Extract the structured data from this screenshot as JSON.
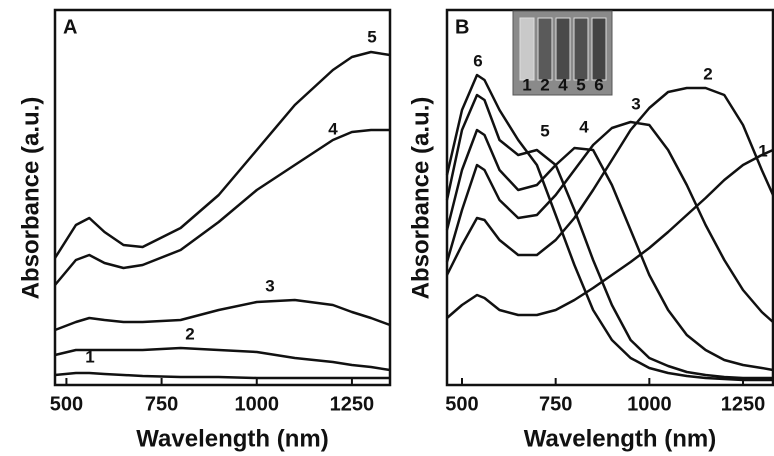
{
  "chart_data": [
    {
      "type": "line",
      "panel": "A",
      "x_label": "Wavelength (nm)",
      "y_label": "Absorbance (a.u.)",
      "x": [
        470,
        525,
        560,
        600,
        650,
        700,
        800,
        900,
        1000,
        1100,
        1200,
        1250,
        1300,
        1350
      ],
      "xlim": [
        470,
        1350
      ],
      "xticks": [
        500,
        750,
        1000,
        1250
      ],
      "ylim": [
        0,
        375
      ],
      "color": "#111111",
      "series": [
        {
          "name": "1",
          "values": [
            10,
            12,
            12,
            11,
            10,
            9,
            8,
            8,
            7,
            7,
            7,
            7,
            7,
            7
          ]
        },
        {
          "name": "2",
          "values": [
            30,
            35,
            35,
            35,
            35,
            35,
            37,
            35,
            33,
            27,
            23,
            20,
            18,
            15
          ]
        },
        {
          "name": "3",
          "values": [
            55,
            63,
            67,
            65,
            63,
            63,
            65,
            75,
            83,
            85,
            80,
            73,
            67,
            60
          ]
        },
        {
          "name": "4",
          "values": [
            100,
            125,
            130,
            122,
            117,
            120,
            135,
            163,
            195,
            220,
            245,
            253,
            255,
            255
          ]
        },
        {
          "name": "5",
          "values": [
            127,
            160,
            167,
            153,
            140,
            138,
            157,
            190,
            235,
            280,
            315,
            328,
            333,
            330
          ]
        }
      ]
    },
    {
      "type": "line",
      "panel": "B",
      "x_label": "Wavelength (nm)",
      "y_label": "Absorbance (a.u.)",
      "inset_labels": [
        "1",
        "2",
        "4",
        "5",
        "6"
      ],
      "x": [
        460,
        500,
        540,
        560,
        600,
        650,
        700,
        750,
        800,
        850,
        900,
        950,
        1000,
        1050,
        1100,
        1150,
        1200,
        1250,
        1300,
        1330
      ],
      "xlim": [
        460,
        1330
      ],
      "xticks": [
        500,
        750,
        1000,
        1250
      ],
      "ylim": [
        0,
        375
      ],
      "color": "#111111",
      "series": [
        {
          "name": "1",
          "values": [
            67,
            80,
            90,
            87,
            75,
            70,
            70,
            75,
            85,
            97,
            110,
            123,
            137,
            153,
            170,
            187,
            205,
            220,
            230,
            235
          ]
        },
        {
          "name": "2",
          "values": [
            110,
            140,
            167,
            165,
            145,
            130,
            130,
            145,
            167,
            195,
            225,
            255,
            277,
            293,
            297,
            297,
            290,
            260,
            215,
            190
          ]
        },
        {
          "name": "3",
          "values": [
            123,
            175,
            220,
            215,
            185,
            167,
            170,
            190,
            215,
            240,
            257,
            263,
            260,
            235,
            200,
            160,
            125,
            95,
            73,
            63
          ]
        },
        {
          "name": "4",
          "values": [
            155,
            215,
            255,
            250,
            215,
            195,
            200,
            220,
            237,
            235,
            200,
            155,
            110,
            75,
            50,
            35,
            25,
            20,
            17,
            15
          ]
        },
        {
          "name": "5",
          "values": [
            185,
            255,
            290,
            285,
            245,
            230,
            235,
            220,
            175,
            125,
            80,
            45,
            27,
            19,
            13,
            10,
            8,
            7,
            7,
            7
          ]
        },
        {
          "name": "6",
          "values": [
            210,
            275,
            310,
            305,
            275,
            245,
            220,
            170,
            120,
            75,
            45,
            27,
            17,
            12,
            9,
            7,
            6,
            5,
            5,
            5
          ]
        }
      ]
    }
  ]
}
